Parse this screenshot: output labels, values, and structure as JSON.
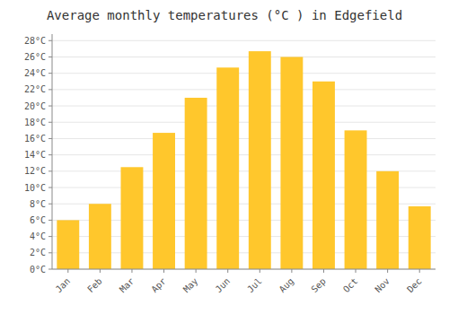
{
  "chart_data": {
    "type": "bar",
    "title": "Average monthly temperatures (°C ) in Edgefield",
    "categories": [
      "Jan",
      "Feb",
      "Mar",
      "Apr",
      "May",
      "Jun",
      "Jul",
      "Aug",
      "Sep",
      "Oct",
      "Nov",
      "Dec"
    ],
    "values": [
      6.0,
      8.0,
      12.5,
      16.7,
      21.0,
      24.7,
      26.7,
      26.0,
      23.0,
      17.0,
      12.0,
      7.7
    ],
    "color": "#FFC72C",
    "ylim": [
      0,
      28.8
    ],
    "yticks": [
      {
        "value": 0,
        "label": "0°C"
      },
      {
        "value": 2,
        "label": "2°C"
      },
      {
        "value": 4,
        "label": "4°C"
      },
      {
        "value": 6,
        "label": "6°C"
      },
      {
        "value": 8,
        "label": "8°C"
      },
      {
        "value": 10,
        "label": "10°C"
      },
      {
        "value": 12,
        "label": "12°C"
      },
      {
        "value": 14,
        "label": "14°C"
      },
      {
        "value": 16,
        "label": "16°C"
      },
      {
        "value": 18,
        "label": "18°C"
      },
      {
        "value": 20,
        "label": "20°C"
      },
      {
        "value": 22,
        "label": "22°C"
      },
      {
        "value": 24,
        "label": "24°C"
      },
      {
        "value": 26,
        "label": "26°C"
      },
      {
        "value": 28,
        "label": "28°C"
      }
    ],
    "grid": true
  }
}
